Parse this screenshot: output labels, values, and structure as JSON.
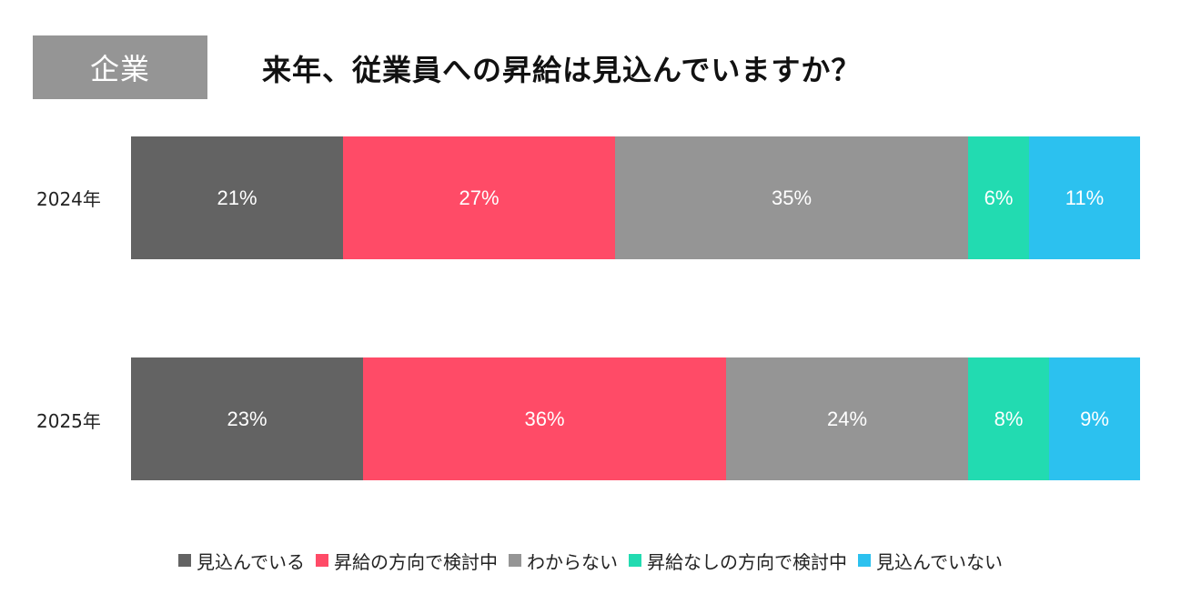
{
  "header": {
    "tag": "企業",
    "title": "来年、従業員への昇給は見込んでいますか？"
  },
  "chart_data": {
    "type": "bar",
    "orientation": "horizontal",
    "stacked": true,
    "normalized": true,
    "categories": [
      "2024年",
      "2025年"
    ],
    "series": [
      {
        "name": "見込んでいる",
        "color": "#636363",
        "values": [
          21,
          23
        ],
        "labels": [
          "21%",
          "23%"
        ]
      },
      {
        "name": "昇給の方向で検討中",
        "color": "#FF4B67",
        "values": [
          27,
          36
        ],
        "labels": [
          "27%",
          "36%"
        ]
      },
      {
        "name": "わからない",
        "color": "#959595",
        "values": [
          35,
          24
        ],
        "labels": [
          "35%",
          "24%"
        ]
      },
      {
        "name": "昇給なしの方向で検討中",
        "color": "#22DBB1",
        "values": [
          6,
          8
        ],
        "labels": [
          "6%",
          "8%"
        ]
      },
      {
        "name": "見込んでいない",
        "color": "#2CC1EF",
        "values": [
          11,
          9
        ],
        "labels": [
          "11%",
          "9%"
        ]
      }
    ],
    "xlim": [
      0,
      100
    ],
    "legend": "bottom",
    "grid": false
  }
}
